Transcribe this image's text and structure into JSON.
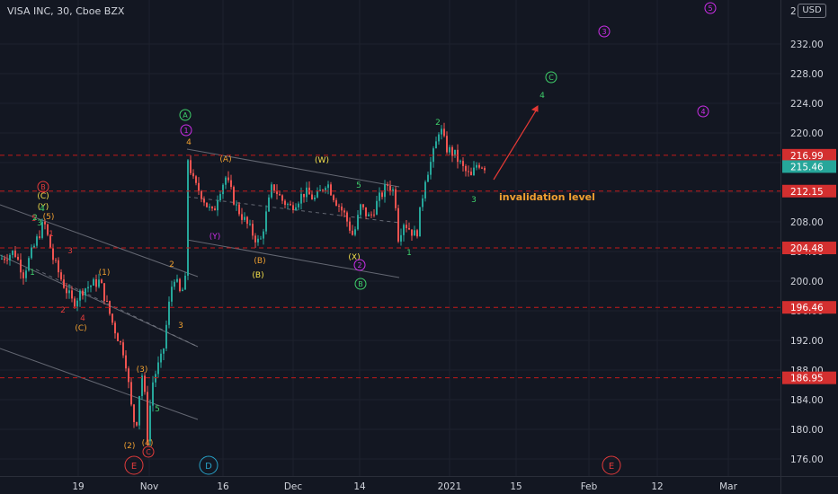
{
  "header": {
    "title": "VISA INC, 30, Cboe BZX",
    "currency": "USD",
    "top_partial_label": "2"
  },
  "colors": {
    "background": "#131722",
    "grid": "#1e222d",
    "up": "#26a69a",
    "down": "#ef5350",
    "axis_text": "#d1d4dc",
    "level": "#c41a1a",
    "current": "#26a69a",
    "orange": "#f0a030",
    "yellow": "#f5e04a",
    "green": "#3fd16b",
    "purple": "#cc2ee8",
    "red": "#e33b3b",
    "blue": "#27a2c8",
    "channel": "#787b86",
    "arrow": "#e53935"
  },
  "chart_data": {
    "type": "candlestick",
    "symbol": "VISA INC",
    "interval": "30",
    "exchange": "Cboe BZX",
    "ylim": [
      174.4,
      235.2
    ],
    "y_ticks": [
      176,
      180,
      184,
      188,
      192,
      196,
      200,
      204,
      208,
      212,
      216,
      220,
      224,
      228,
      232
    ],
    "y_tick_labels": [
      "176.00",
      "180.00",
      "184.00",
      "188.00",
      "192.00",
      "196.00",
      "200.00",
      "204.00",
      "208.00",
      "212.00",
      "216.00",
      "220.00",
      "224.00",
      "228.00",
      "232.00"
    ],
    "x_ticks": [
      "19",
      "Nov",
      "16",
      "Dec",
      "14",
      "2021",
      "15",
      "Feb",
      "12",
      "Mar"
    ],
    "price_levels": [
      {
        "value": 216.99,
        "label": "216.99"
      },
      {
        "value": 212.15,
        "label": "212.15"
      },
      {
        "value": 204.48,
        "label": "204.48"
      },
      {
        "value": 196.46,
        "label": "196.46"
      },
      {
        "value": 186.95,
        "label": "186.95"
      }
    ],
    "current_price": {
      "value": 215.46,
      "label": "215.46"
    },
    "price_path": [
      [
        0,
        203
      ],
      [
        15,
        204
      ],
      [
        25,
        201
      ],
      [
        38,
        205
      ],
      [
        48,
        208
      ],
      [
        58,
        203
      ],
      [
        68,
        200
      ],
      [
        80,
        197
      ],
      [
        92,
        199
      ],
      [
        110,
        200
      ],
      [
        125,
        194
      ],
      [
        138,
        190
      ],
      [
        145,
        183
      ],
      [
        150,
        180
      ],
      [
        155,
        186
      ],
      [
        158,
        188
      ],
      [
        163,
        179
      ],
      [
        168,
        186
      ],
      [
        173,
        188
      ],
      [
        180,
        190
      ],
      [
        186,
        196
      ],
      [
        192,
        201
      ],
      [
        200,
        198
      ],
      [
        205,
        200
      ],
      [
        206,
        210
      ],
      [
        208,
        216.5
      ],
      [
        215,
        213
      ],
      [
        222,
        212
      ],
      [
        230,
        210
      ],
      [
        236,
        209
      ],
      [
        242,
        212
      ],
      [
        250,
        214
      ],
      [
        262,
        210
      ],
      [
        272,
        208
      ],
      [
        282,
        206
      ],
      [
        288,
        205
      ],
      [
        295,
        209
      ],
      [
        302,
        213
      ],
      [
        312,
        211
      ],
      [
        322,
        210
      ],
      [
        338,
        212
      ],
      [
        350,
        211
      ],
      [
        362,
        213.5
      ],
      [
        372,
        211
      ],
      [
        382,
        209
      ],
      [
        392,
        206
      ],
      [
        400,
        210
      ],
      [
        410,
        208.5
      ],
      [
        420,
        211
      ],
      [
        430,
        213
      ],
      [
        438,
        212
      ],
      [
        442,
        206
      ],
      [
        448,
        208
      ],
      [
        455,
        207
      ],
      [
        462,
        206
      ],
      [
        467,
        210
      ],
      [
        472,
        214
      ],
      [
        478,
        216
      ],
      [
        483,
        218
      ],
      [
        488,
        221
      ],
      [
        495,
        218
      ],
      [
        505,
        217
      ],
      [
        515,
        215
      ],
      [
        523,
        214
      ],
      [
        530,
        216
      ],
      [
        538,
        215.5
      ]
    ],
    "annotations": [
      {
        "text": "invalidation level",
        "color": "orange"
      },
      {
        "text": "(B)",
        "color": "yellow"
      },
      {
        "text": "(W)",
        "color": "yellow"
      },
      {
        "text": "(X)",
        "color": "yellow"
      },
      {
        "text": "(Y)",
        "color": "yellow"
      },
      {
        "text": "(C)",
        "color": "yellow"
      },
      {
        "text": "(Y)",
        "color": "purple"
      },
      {
        "text": "(A)",
        "color": "orange"
      },
      {
        "text": "(B)",
        "color": "orange"
      },
      {
        "text": "(C)",
        "color": "orange"
      },
      {
        "text": "(1)",
        "color": "orange"
      },
      {
        "text": "(2)",
        "color": "orange"
      },
      {
        "text": "(3)",
        "color": "orange"
      },
      {
        "text": "(4)",
        "color": "orange"
      },
      {
        "text": "(5)",
        "color": "orange"
      },
      {
        "text": "1",
        "color": "red"
      },
      {
        "text": "2",
        "color": "red"
      },
      {
        "text": "3",
        "color": "red"
      },
      {
        "text": "4",
        "color": "red"
      },
      {
        "text": "5",
        "color": "red"
      },
      {
        "text": "1",
        "color": "green"
      },
      {
        "text": "2",
        "color": "green"
      },
      {
        "text": "3",
        "color": "green"
      },
      {
        "text": "4",
        "color": "green"
      },
      {
        "text": "5",
        "color": "green"
      },
      {
        "text": "1",
        "color": "green"
      },
      {
        "text": "2",
        "color": "green"
      },
      {
        "text": "3",
        "color": "green"
      },
      {
        "text": "4",
        "color": "green"
      },
      {
        "text": "5",
        "color": "green"
      },
      {
        "text": "2",
        "color": "orange"
      },
      {
        "text": "3",
        "color": "orange"
      },
      {
        "text": "4",
        "color": "orange"
      },
      {
        "text": "5",
        "color": "orange"
      }
    ],
    "circled_labels": [
      {
        "text": "B",
        "color": "red"
      },
      {
        "text": "C",
        "color": "red"
      },
      {
        "text": "E",
        "color": "red"
      },
      {
        "text": "D",
        "color": "blue"
      },
      {
        "text": "E",
        "color": "red"
      },
      {
        "text": "A",
        "color": "green"
      },
      {
        "text": "B",
        "color": "green"
      },
      {
        "text": "C",
        "color": "green"
      },
      {
        "text": "1",
        "color": "purple"
      },
      {
        "text": "2",
        "color": "purple"
      },
      {
        "text": "3",
        "color": "purple"
      },
      {
        "text": "4",
        "color": "purple"
      },
      {
        "text": "5",
        "color": "purple"
      }
    ]
  }
}
